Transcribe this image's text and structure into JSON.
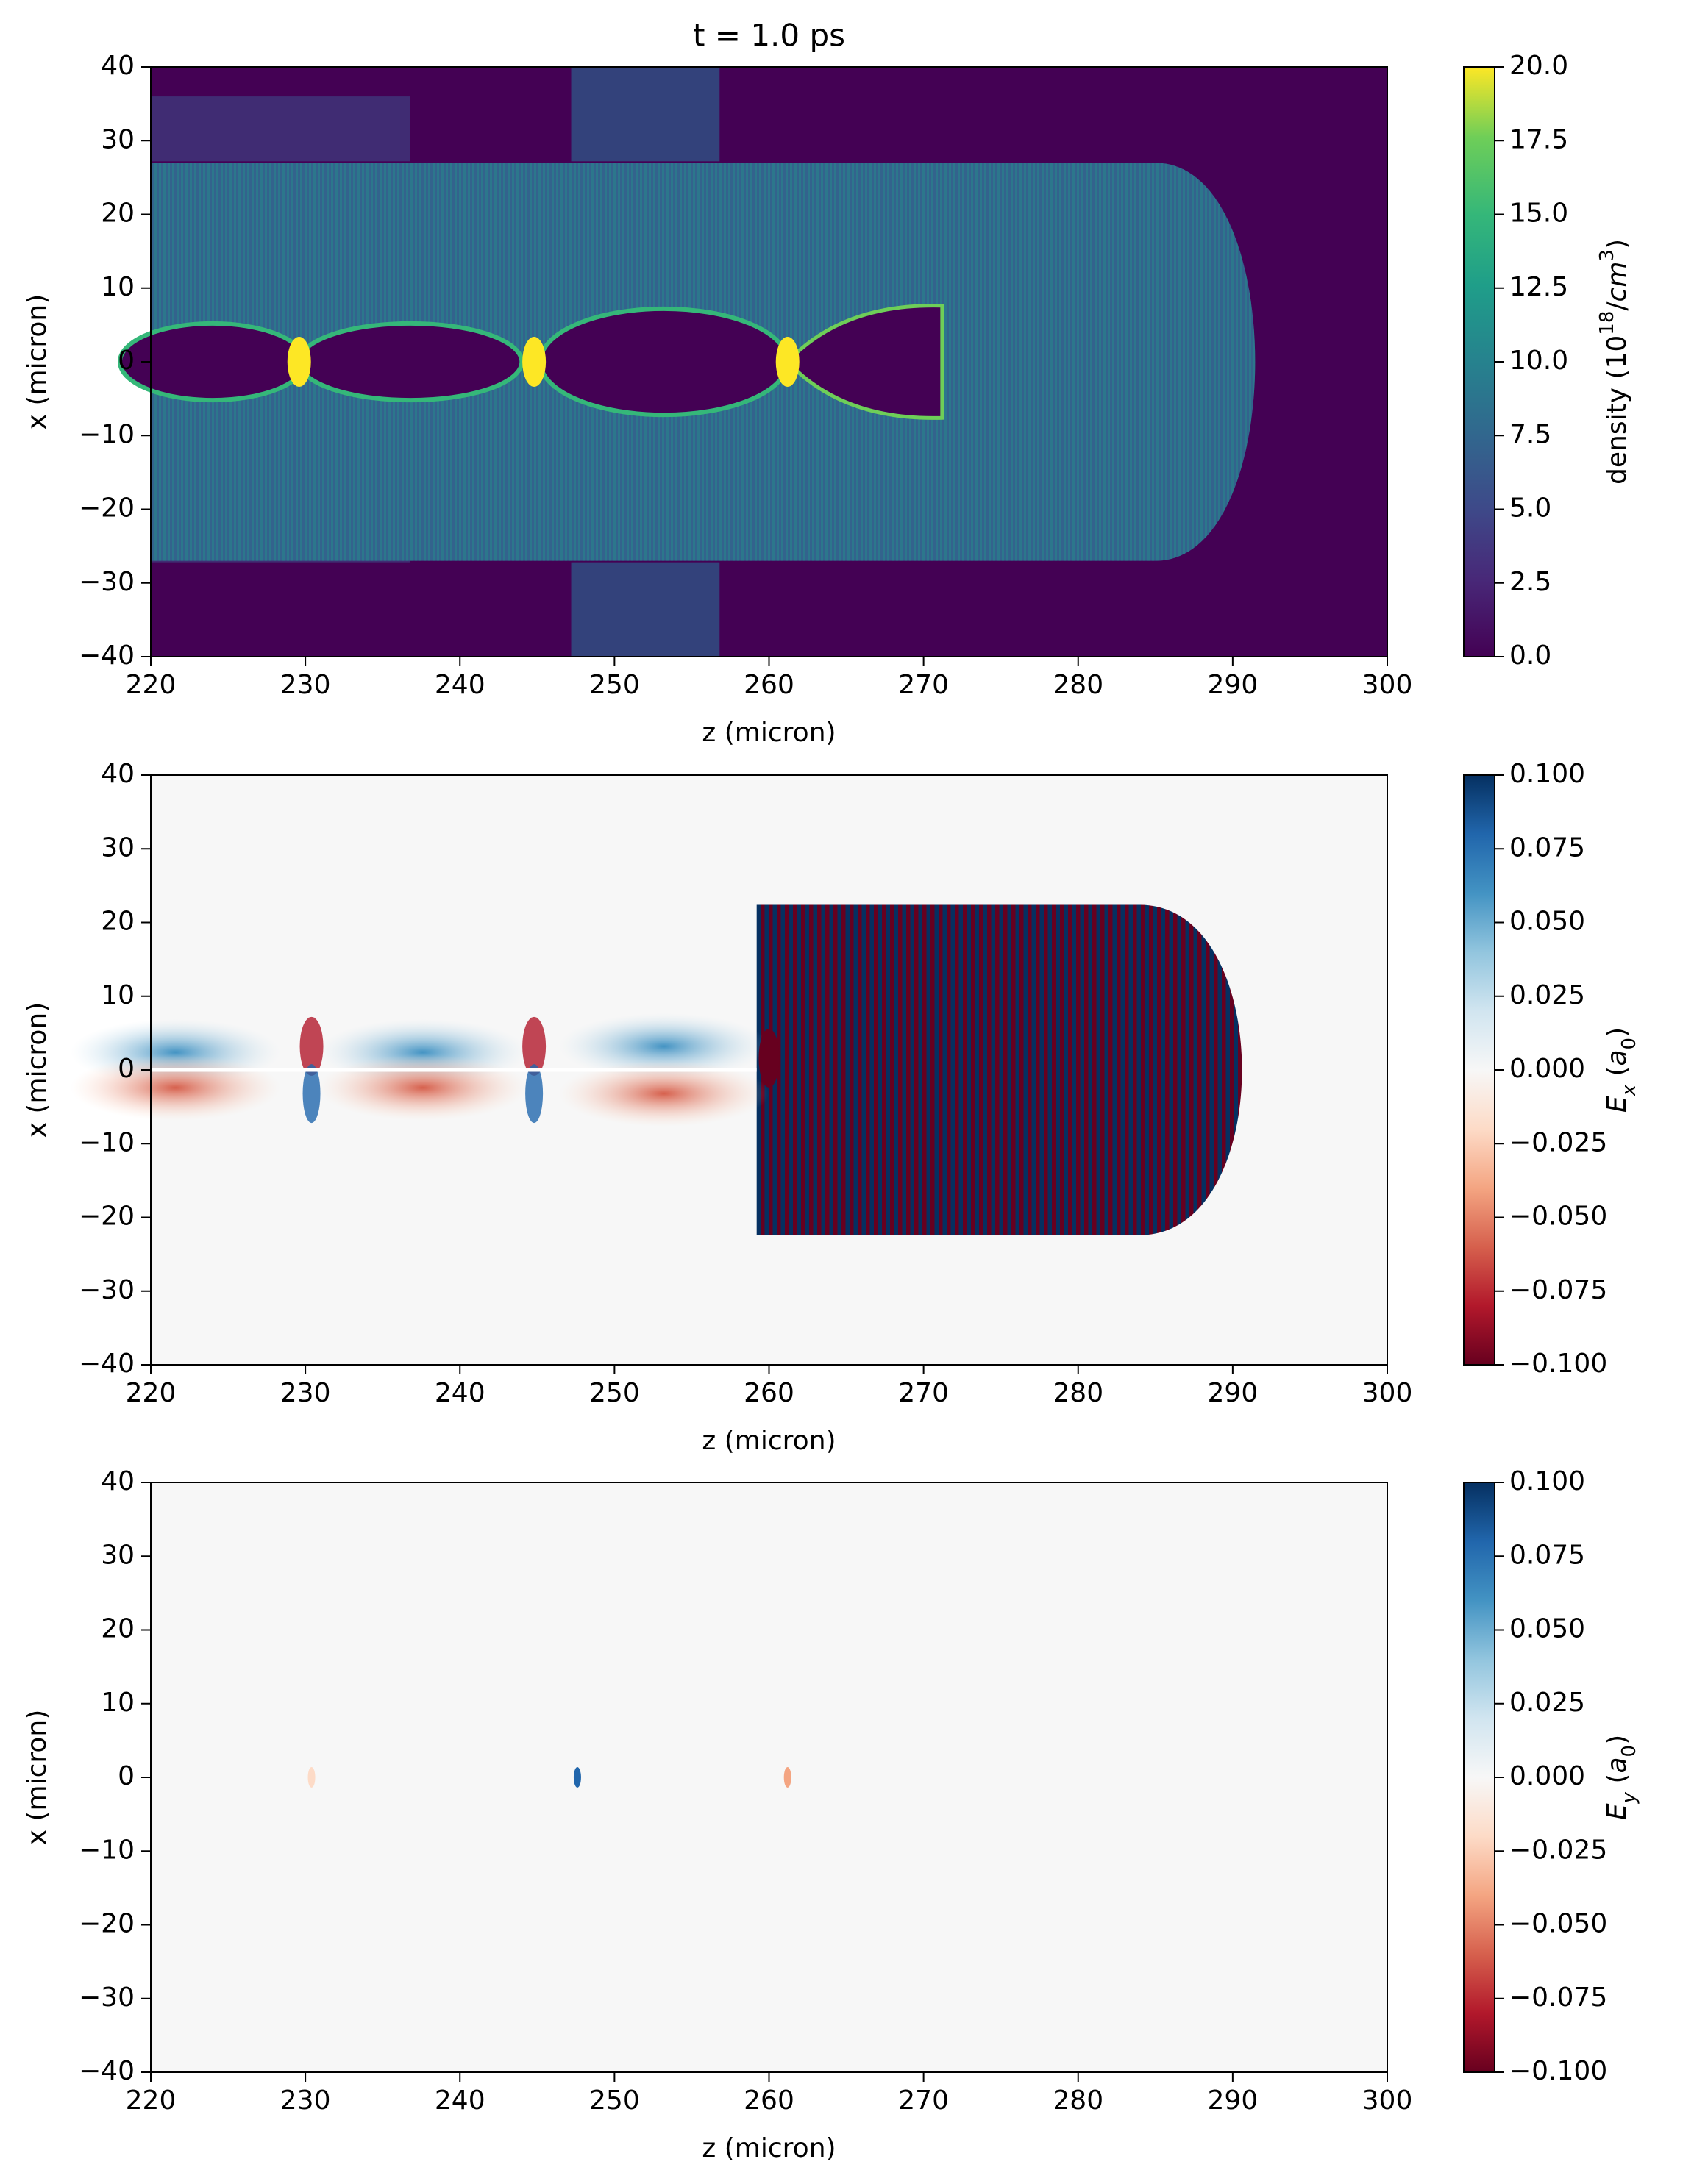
{
  "chart_data": [
    {
      "type": "heatmap",
      "title": "t = 1.0 ps",
      "xlabel": "z (micron)",
      "ylabel": "x (micron)",
      "xlim": [
        220,
        300
      ],
      "xticks": [
        220,
        230,
        240,
        250,
        260,
        270,
        280,
        290,
        300
      ],
      "ylim": [
        -40,
        40
      ],
      "yticks": [
        {
          "value": -40,
          "label": "−40"
        },
        {
          "value": -30,
          "label": "−30"
        },
        {
          "value": -20,
          "label": "−20"
        },
        {
          "value": -10,
          "label": "−10"
        },
        0,
        10,
        20,
        30,
        40
      ],
      "colormap": "viridis",
      "clim": [
        0,
        20
      ],
      "cticks": [
        {
          "value": 0,
          "label": "0.0"
        },
        {
          "value": 2.5,
          "label": "2.5"
        },
        {
          "value": 5,
          "label": "5.0"
        },
        {
          "value": 7.5,
          "label": "7.5"
        },
        {
          "value": 10,
          "label": "10.0"
        },
        {
          "value": 12.5,
          "label": "12.5"
        },
        {
          "value": 15,
          "label": "15.0"
        },
        {
          "value": 17.5,
          "label": "17.5"
        },
        {
          "value": 20,
          "label": "20.0"
        }
      ],
      "clabel": [
        {
          "text": "density (10"
        },
        {
          "text": "18",
          "shift": "super"
        },
        {
          "text": "/"
        },
        {
          "text": "cm",
          "style": "italic"
        },
        {
          "text": "3",
          "shift": "super"
        },
        {
          "text": ")"
        }
      ]
    },
    {
      "type": "heatmap",
      "xlabel": "z (micron)",
      "ylabel": "x (micron)",
      "xlim": [
        220,
        300
      ],
      "xticks": [
        220,
        230,
        240,
        250,
        260,
        270,
        280,
        290,
        300
      ],
      "ylim": [
        -40,
        40
      ],
      "yticks": [
        {
          "value": -40,
          "label": "−40"
        },
        {
          "value": -30,
          "label": "−30"
        },
        {
          "value": -20,
          "label": "−20"
        },
        {
          "value": -10,
          "label": "−10"
        },
        0,
        10,
        20,
        30,
        40
      ],
      "colormap": "RdBu",
      "clim": [
        -0.1,
        0.1
      ],
      "cticks": [
        {
          "value": -0.1,
          "label": "−0.100"
        },
        {
          "value": -0.075,
          "label": "−0.075"
        },
        {
          "value": -0.05,
          "label": "−0.050"
        },
        {
          "value": -0.025,
          "label": "−0.025"
        },
        {
          "value": 0,
          "label": "0.000"
        },
        {
          "value": 0.025,
          "label": "0.025"
        },
        {
          "value": 0.05,
          "label": "0.050"
        },
        {
          "value": 0.075,
          "label": "0.075"
        },
        {
          "value": 0.1,
          "label": "0.100"
        }
      ],
      "clabel": [
        {
          "text": "E",
          "style": "italic"
        },
        {
          "text": "x",
          "shift": "sub",
          "style": "italic"
        },
        {
          "text": " ("
        },
        {
          "text": "a",
          "style": "italic"
        },
        {
          "text": "0",
          "shift": "sub"
        },
        {
          "text": ")"
        }
      ]
    },
    {
      "type": "heatmap",
      "xlabel": "z (micron)",
      "ylabel": "x (micron)",
      "xlim": [
        220,
        300
      ],
      "xticks": [
        220,
        230,
        240,
        250,
        260,
        270,
        280,
        290,
        300
      ],
      "ylim": [
        -40,
        40
      ],
      "yticks": [
        {
          "value": -40,
          "label": "−40"
        },
        {
          "value": -30,
          "label": "−30"
        },
        {
          "value": -20,
          "label": "−20"
        },
        {
          "value": -10,
          "label": "−10"
        },
        0,
        10,
        20,
        30,
        40
      ],
      "colormap": "RdBu",
      "clim": [
        -0.1,
        0.1
      ],
      "cticks": [
        {
          "value": -0.1,
          "label": "−0.100"
        },
        {
          "value": -0.075,
          "label": "−0.075"
        },
        {
          "value": -0.05,
          "label": "−0.050"
        },
        {
          "value": -0.025,
          "label": "−0.025"
        },
        {
          "value": 0,
          "label": "0.000"
        },
        {
          "value": 0.025,
          "label": "0.025"
        },
        {
          "value": 0.05,
          "label": "0.050"
        },
        {
          "value": 0.075,
          "label": "0.075"
        },
        {
          "value": 0.1,
          "label": "0.100"
        }
      ],
      "clabel": [
        {
          "text": "E",
          "style": "italic"
        },
        {
          "text": "y",
          "shift": "sub",
          "style": "italic"
        },
        {
          "text": " ("
        },
        {
          "text": "a",
          "style": "italic"
        },
        {
          "text": "0",
          "shift": "sub"
        },
        {
          "text": ")"
        }
      ]
    }
  ]
}
